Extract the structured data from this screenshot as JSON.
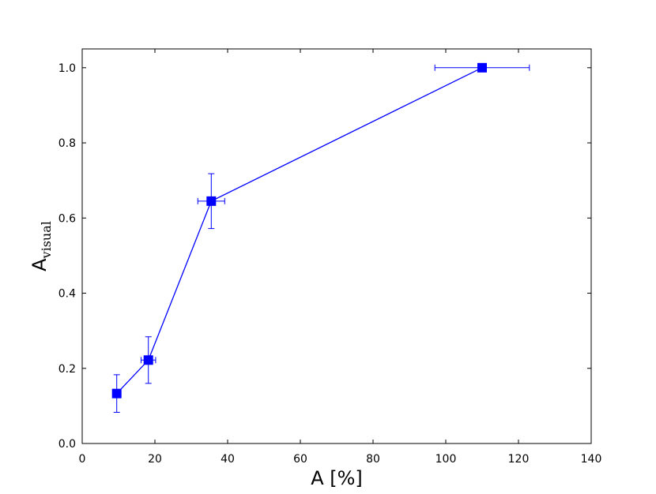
{
  "chart_data": {
    "type": "scatter",
    "connected": true,
    "title": "",
    "xlabel": "A [%]",
    "ylabel": "A",
    "ylabel_subscript": "visual",
    "xlim": [
      0,
      140
    ],
    "ylim": [
      0.0,
      1.05
    ],
    "xticks": [
      "0",
      "20",
      "40",
      "60",
      "80",
      "100",
      "120",
      "140"
    ],
    "yticks": [
      "0.0",
      "0.2",
      "0.4",
      "0.6",
      "0.8",
      "1.0"
    ],
    "grid": false,
    "legend": "none",
    "color": "#0000ff",
    "marker": "square",
    "points": [
      {
        "x": 9.5,
        "y": 0.133,
        "x_err": 0.0,
        "y_err": 0.05
      },
      {
        "x": 18.2,
        "y": 0.222,
        "x_err": 2.0,
        "y_err": 0.062
      },
      {
        "x": 35.5,
        "y": 0.645,
        "x_err": 3.7,
        "y_err": 0.073
      },
      {
        "x": 110.0,
        "y": 1.0,
        "x_err": 13.0,
        "y_err": 0.0
      }
    ]
  }
}
